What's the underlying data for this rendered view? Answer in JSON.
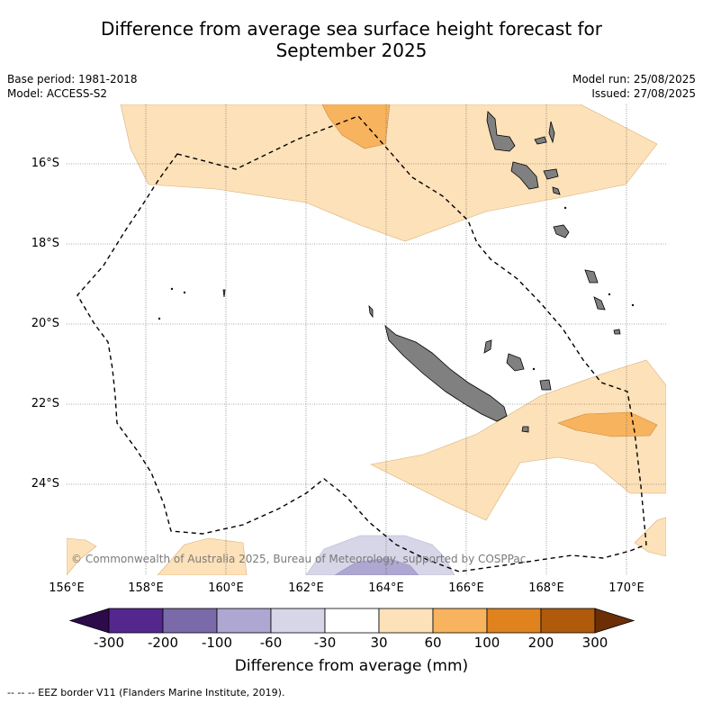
{
  "title": {
    "line1": "Difference from average sea surface height forecast for",
    "line2": "September 2025"
  },
  "meta": {
    "base_period": "Base period: 1981-2018",
    "model": "Model: ACCESS-S2",
    "model_run": "Model run: 25/08/2025",
    "issued": "Issued: 27/08/2025"
  },
  "map": {
    "lat_labels": [
      "16°S",
      "18°S",
      "20°S",
      "22°S",
      "24°S"
    ],
    "lon_labels": [
      "156°E",
      "158°E",
      "160°E",
      "162°E",
      "164°E",
      "166°E",
      "168°E",
      "170°E"
    ],
    "copyright": "© Commonwealth of Australia 2025, Bureau of Meteorology, supported by COSPPac",
    "colors": {
      "land": "#808080",
      "pos_30_60": "#fde1b8",
      "pos_60_100": "#f8b35e",
      "neg_30_60": "#d6d6e8",
      "neg_60_100": "#ada7d1"
    }
  },
  "colorbar": {
    "ticks": [
      "-300",
      "-200",
      "-100",
      "-60",
      "-30",
      "30",
      "60",
      "100",
      "200",
      "300"
    ],
    "colors": [
      "#2d0a4a",
      "#54278f",
      "#7b6aa9",
      "#ada7d1",
      "#d6d6e8",
      "#ffffff",
      "#fde1b8",
      "#f8b35e",
      "#e0821e",
      "#b05a0c",
      "#6b2e05"
    ],
    "label": "Difference from average (mm)"
  },
  "footer": "--  --  -- EEZ border V11 (Flanders Marine Institute, 2019)."
}
